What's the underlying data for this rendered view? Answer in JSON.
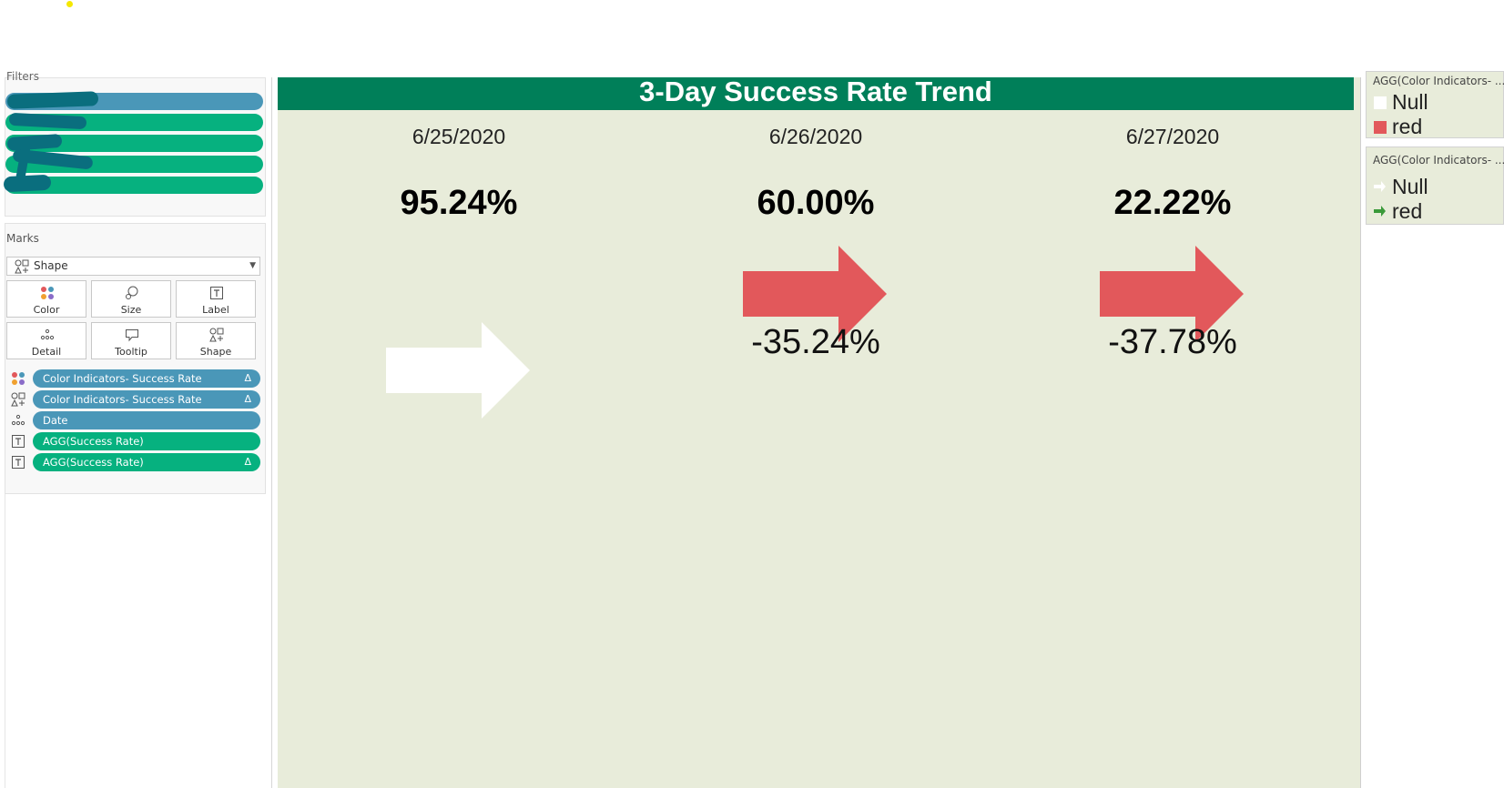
{
  "filters": {
    "title": "Filters"
  },
  "marks": {
    "title": "Marks",
    "mark_type": "Shape",
    "buttons": [
      {
        "label": "Color",
        "icon": "color-dots-icon"
      },
      {
        "label": "Size",
        "icon": "size-icon"
      },
      {
        "label": "Label",
        "icon": "label-icon"
      },
      {
        "label": "Detail",
        "icon": "detail-icon"
      },
      {
        "label": "Tooltip",
        "icon": "tooltip-icon"
      },
      {
        "label": "Shape",
        "icon": "shape-icon"
      }
    ],
    "shelf": [
      {
        "label": "Color Indicators- Success Rate",
        "delta": "Δ",
        "color": "blue",
        "icon": "color-dots-icon"
      },
      {
        "label": "Color Indicators- Success Rate",
        "delta": "Δ",
        "color": "blue",
        "icon": "shape-icon"
      },
      {
        "label": "Date",
        "delta": "",
        "color": "blue",
        "icon": "detail-icon"
      },
      {
        "label": "AGG(Success Rate)",
        "delta": "",
        "color": "green",
        "icon": "label-icon"
      },
      {
        "label": "AGG(Success Rate)",
        "delta": "Δ",
        "color": "green",
        "icon": "label-icon"
      }
    ]
  },
  "viz": {
    "title": "3-Day Success Rate Trend",
    "title_bg": "#007f59",
    "background": "#e8ecda",
    "days": [
      {
        "date": "6/25/2020",
        "rate": "95.24%",
        "change": "",
        "arrow_color": "#ffffff"
      },
      {
        "date": "6/26/2020",
        "rate": "60.00%",
        "change": "-35.24%",
        "arrow_color": "#e2585b"
      },
      {
        "date": "6/27/2020",
        "rate": "22.22%",
        "change": "-37.78%",
        "arrow_color": "#e2585b"
      }
    ]
  },
  "legends": {
    "color": {
      "title": "AGG(Color Indicators- ...",
      "items": [
        {
          "label": "Null",
          "color": "#ffffff"
        },
        {
          "label": "red",
          "color": "#e2585b"
        }
      ]
    },
    "shape": {
      "title": "AGG(Color Indicators- ...",
      "items": [
        {
          "label": "Null",
          "icon": "arrow-right-icon",
          "color": "#ffffff"
        },
        {
          "label": "red",
          "icon": "arrow-right-icon",
          "color": "#3a9a3a"
        }
      ]
    }
  }
}
